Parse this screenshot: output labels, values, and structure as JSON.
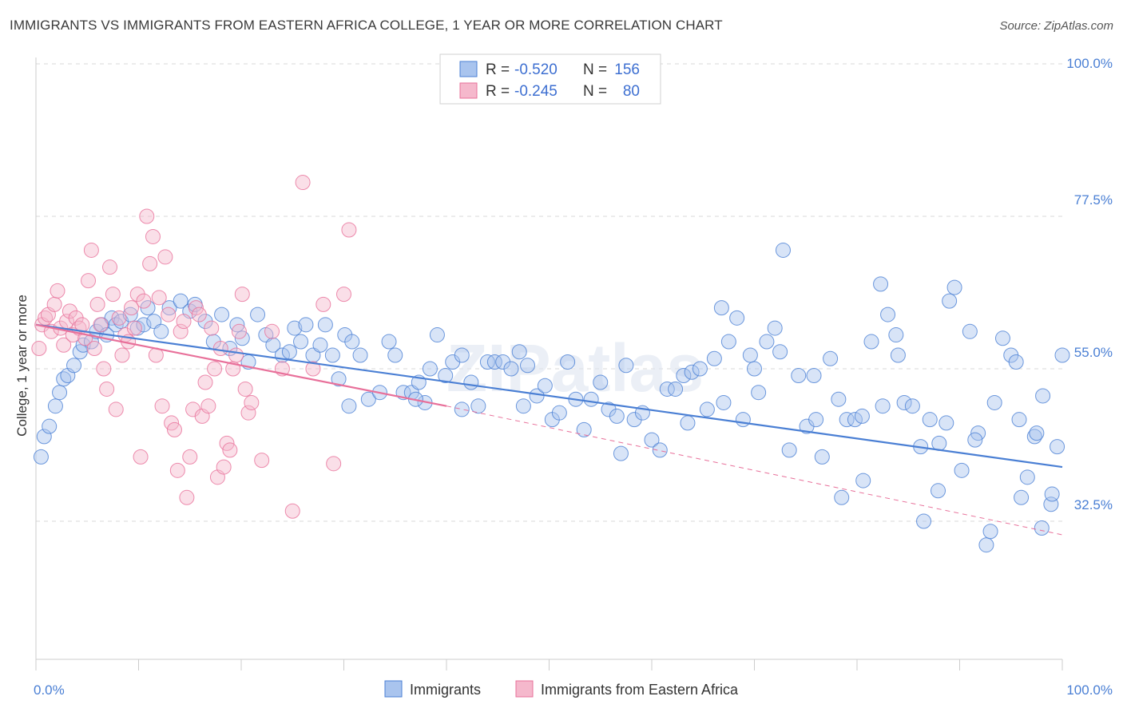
{
  "title": "IMMIGRANTS VS IMMIGRANTS FROM EASTERN AFRICA COLLEGE, 1 YEAR OR MORE CORRELATION CHART",
  "source": "Source: ZipAtlas.com",
  "watermark": "ZIPatlas",
  "colors": {
    "blue": "#4a7fd4",
    "blue_fill": "#a9c4ee",
    "pink": "#e8709a",
    "pink_fill": "#f5b8cc",
    "grid": "#d8d8d8"
  },
  "legend": {
    "rows": [
      {
        "r_label": "R =",
        "r_value": "-0.520",
        "n_label": "N =",
        "n_value": "156"
      },
      {
        "r_label": "R =",
        "r_value": "-0.245",
        "n_label": "N =",
        "n_value": "80"
      }
    ]
  },
  "chart_data": {
    "type": "scatter",
    "xlabel": "",
    "ylabel": "College, 1 year or more",
    "x_tick_labels": [
      "0.0%",
      "100.0%"
    ],
    "y_tick_labels": [
      "100.0%",
      "77.5%",
      "55.0%",
      "32.5%"
    ],
    "xlim": [
      0,
      100
    ],
    "ylim": [
      10,
      105
    ],
    "y_ticks": [
      100.0,
      77.5,
      55.0,
      32.5
    ],
    "grid": true,
    "legend_position": "bottom",
    "series": [
      {
        "name": "Immigrants",
        "color": "#4a7fd4",
        "r": -0.52,
        "n": 156,
        "trend": {
          "x0": 0,
          "y0": 61.5,
          "x1": 100,
          "y1": 40.5
        },
        "points": [
          [
            0.5,
            42
          ],
          [
            0.8,
            45
          ],
          [
            1.3,
            46.5
          ],
          [
            1.9,
            49.5
          ],
          [
            2.3,
            51.5
          ],
          [
            2.7,
            53.5
          ],
          [
            3.1,
            54
          ],
          [
            3.7,
            55.5
          ],
          [
            4.3,
            57.5
          ],
          [
            4.6,
            58.5
          ],
          [
            5.4,
            59
          ],
          [
            5.9,
            60.5
          ],
          [
            6.4,
            61.5
          ],
          [
            6.9,
            60
          ],
          [
            7.4,
            62.5
          ],
          [
            7.8,
            61.5
          ],
          [
            8.3,
            62
          ],
          [
            9.2,
            63
          ],
          [
            9.9,
            61
          ],
          [
            10.5,
            61.5
          ],
          [
            10.9,
            64
          ],
          [
            11.5,
            62
          ],
          [
            12.2,
            60.5
          ],
          [
            13.0,
            64
          ],
          [
            14.1,
            65
          ],
          [
            15.0,
            63.5
          ],
          [
            15.5,
            64.5
          ],
          [
            16.5,
            62
          ],
          [
            17.3,
            59
          ],
          [
            18.1,
            63
          ],
          [
            18.9,
            58
          ],
          [
            19.6,
            61.5
          ],
          [
            20.1,
            59.5
          ],
          [
            20.7,
            56
          ],
          [
            21.6,
            63
          ],
          [
            22.4,
            60
          ],
          [
            23.1,
            58.5
          ],
          [
            24.0,
            57
          ],
          [
            24.7,
            57.5
          ],
          [
            25.2,
            61
          ],
          [
            25.8,
            59
          ],
          [
            26.3,
            61.5
          ],
          [
            27.0,
            57
          ],
          [
            27.7,
            58.5
          ],
          [
            28.2,
            61.5
          ],
          [
            28.9,
            57
          ],
          [
            29.5,
            53.5
          ],
          [
            30.1,
            60
          ],
          [
            30.8,
            59
          ],
          [
            31.6,
            57
          ],
          [
            32.4,
            50.5
          ],
          [
            33.5,
            51.5
          ],
          [
            34.4,
            59
          ],
          [
            35.0,
            57
          ],
          [
            35.8,
            51.5
          ],
          [
            36.6,
            51.5
          ],
          [
            37.3,
            53
          ],
          [
            37.9,
            50
          ],
          [
            38.4,
            55
          ],
          [
            39.1,
            60
          ],
          [
            39.9,
            54
          ],
          [
            40.6,
            56
          ],
          [
            41.5,
            57
          ],
          [
            42.4,
            53
          ],
          [
            43.1,
            49.5
          ],
          [
            44.0,
            56
          ],
          [
            44.7,
            56
          ],
          [
            45.5,
            56
          ],
          [
            46.3,
            55
          ],
          [
            47.1,
            57.5
          ],
          [
            47.9,
            55.5
          ],
          [
            48.8,
            51
          ],
          [
            49.6,
            52.5
          ],
          [
            50.3,
            47.5
          ],
          [
            51.0,
            48.5
          ],
          [
            51.8,
            56
          ],
          [
            52.6,
            50.5
          ],
          [
            53.4,
            46
          ],
          [
            54.1,
            50.5
          ],
          [
            55.0,
            53
          ],
          [
            55.8,
            49
          ],
          [
            56.6,
            48
          ],
          [
            57.5,
            55.5
          ],
          [
            58.3,
            47.5
          ],
          [
            59.1,
            48.5
          ],
          [
            60.0,
            44.5
          ],
          [
            60.8,
            43
          ],
          [
            61.5,
            52
          ],
          [
            62.3,
            52
          ],
          [
            63.1,
            54
          ],
          [
            63.9,
            54.5
          ],
          [
            64.7,
            55
          ],
          [
            65.4,
            49
          ],
          [
            66.1,
            56.5
          ],
          [
            66.8,
            64
          ],
          [
            67.5,
            59
          ],
          [
            68.3,
            62.5
          ],
          [
            68.9,
            47.5
          ],
          [
            69.6,
            57
          ],
          [
            70.4,
            51.5
          ],
          [
            71.2,
            59
          ],
          [
            72.0,
            61
          ],
          [
            72.8,
            72.5
          ],
          [
            73.4,
            43
          ],
          [
            74.3,
            54
          ],
          [
            75.1,
            46.5
          ],
          [
            75.8,
            54
          ],
          [
            76.6,
            42
          ],
          [
            77.4,
            56.5
          ],
          [
            78.2,
            50.5
          ],
          [
            79.0,
            47.5
          ],
          [
            79.8,
            47.5
          ],
          [
            80.6,
            38.5
          ],
          [
            81.4,
            59
          ],
          [
            82.3,
            67.5
          ],
          [
            83.0,
            63
          ],
          [
            83.8,
            60
          ],
          [
            84.6,
            50
          ],
          [
            85.4,
            49.5
          ],
          [
            86.2,
            43.5
          ],
          [
            87.1,
            47.5
          ],
          [
            87.9,
            37
          ],
          [
            88.7,
            47
          ],
          [
            89.5,
            67
          ],
          [
            90.2,
            40
          ],
          [
            91.0,
            60.5
          ],
          [
            91.8,
            45.5
          ],
          [
            92.6,
            29
          ],
          [
            93.4,
            50
          ],
          [
            94.2,
            59.5
          ],
          [
            95.0,
            57
          ],
          [
            95.8,
            47.5
          ],
          [
            96.6,
            39
          ],
          [
            97.3,
            45
          ],
          [
            98.1,
            51
          ],
          [
            98.9,
            35
          ],
          [
            99.5,
            43.5
          ],
          [
            30.5,
            49.5
          ],
          [
            37.0,
            50.5
          ],
          [
            41.5,
            49
          ],
          [
            47.5,
            49.5
          ],
          [
            57.0,
            42.5
          ],
          [
            63.5,
            47
          ],
          [
            70.0,
            55
          ],
          [
            76.0,
            47.5
          ],
          [
            84.0,
            57
          ],
          [
            89.0,
            65
          ],
          [
            93.0,
            31
          ],
          [
            96.0,
            36
          ],
          [
            98.0,
            31.5
          ],
          [
            100.0,
            57
          ],
          [
            97.5,
            45.5
          ],
          [
            86.5,
            32.5
          ],
          [
            88.0,
            44
          ],
          [
            91.5,
            44.5
          ],
          [
            78.5,
            36
          ],
          [
            67.0,
            50
          ],
          [
            72.5,
            57.5
          ],
          [
            80.5,
            48
          ],
          [
            82.5,
            49.5
          ],
          [
            95.5,
            56
          ],
          [
            99.0,
            36.5
          ]
        ]
      },
      {
        "name": "Immigrants from Eastern Africa",
        "color": "#e8709a",
        "r": -0.245,
        "n": 80,
        "trend": {
          "x0": 0,
          "y0": 61.5,
          "x1": 40,
          "y1": 49.5
        },
        "trend_dashed": {
          "x0": 40,
          "y0": 49.5,
          "x1": 100,
          "y1": 30.5
        },
        "points": [
          [
            0.3,
            58
          ],
          [
            0.6,
            61.5
          ],
          [
            0.9,
            62.5
          ],
          [
            1.2,
            63
          ],
          [
            1.5,
            60.5
          ],
          [
            1.8,
            64.5
          ],
          [
            2.1,
            66.5
          ],
          [
            2.4,
            61
          ],
          [
            2.7,
            58.5
          ],
          [
            3.0,
            62
          ],
          [
            3.3,
            63.5
          ],
          [
            3.6,
            60
          ],
          [
            3.9,
            62.5
          ],
          [
            4.2,
            61
          ],
          [
            4.5,
            61.5
          ],
          [
            4.8,
            59.5
          ],
          [
            5.1,
            68
          ],
          [
            5.4,
            72.5
          ],
          [
            5.7,
            58
          ],
          [
            6.0,
            64.5
          ],
          [
            6.3,
            61.5
          ],
          [
            6.6,
            55
          ],
          [
            6.9,
            52
          ],
          [
            7.2,
            70
          ],
          [
            7.5,
            66
          ],
          [
            7.8,
            49
          ],
          [
            8.1,
            62.5
          ],
          [
            8.4,
            57
          ],
          [
            8.7,
            60
          ],
          [
            9.0,
            59
          ],
          [
            9.3,
            64
          ],
          [
            9.6,
            61
          ],
          [
            9.9,
            66
          ],
          [
            10.2,
            42
          ],
          [
            10.5,
            65
          ],
          [
            10.8,
            77.5
          ],
          [
            11.1,
            70.5
          ],
          [
            11.4,
            74.5
          ],
          [
            11.7,
            57
          ],
          [
            12.0,
            65.5
          ],
          [
            12.3,
            49.5
          ],
          [
            12.6,
            71.5
          ],
          [
            12.9,
            63
          ],
          [
            13.2,
            47
          ],
          [
            13.5,
            46
          ],
          [
            13.8,
            40
          ],
          [
            14.1,
            60.5
          ],
          [
            14.4,
            62
          ],
          [
            14.7,
            36
          ],
          [
            15.0,
            42
          ],
          [
            15.3,
            49
          ],
          [
            15.6,
            64
          ],
          [
            15.9,
            63
          ],
          [
            16.2,
            48
          ],
          [
            16.5,
            53
          ],
          [
            16.8,
            49.5
          ],
          [
            17.1,
            61
          ],
          [
            17.4,
            55
          ],
          [
            17.7,
            39
          ],
          [
            18.0,
            58
          ],
          [
            18.3,
            40.5
          ],
          [
            18.6,
            44
          ],
          [
            18.9,
            43
          ],
          [
            19.2,
            55
          ],
          [
            19.5,
            57
          ],
          [
            19.8,
            60.5
          ],
          [
            20.1,
            66
          ],
          [
            20.4,
            52
          ],
          [
            20.7,
            48.5
          ],
          [
            21.0,
            50
          ],
          [
            22.0,
            41.5
          ],
          [
            23.0,
            60.5
          ],
          [
            24.0,
            55
          ],
          [
            25.0,
            34
          ],
          [
            26.0,
            82.5
          ],
          [
            27.0,
            55
          ],
          [
            28.0,
            64.5
          ],
          [
            29.0,
            41
          ],
          [
            30.0,
            66
          ],
          [
            30.5,
            75.5
          ]
        ]
      }
    ]
  }
}
